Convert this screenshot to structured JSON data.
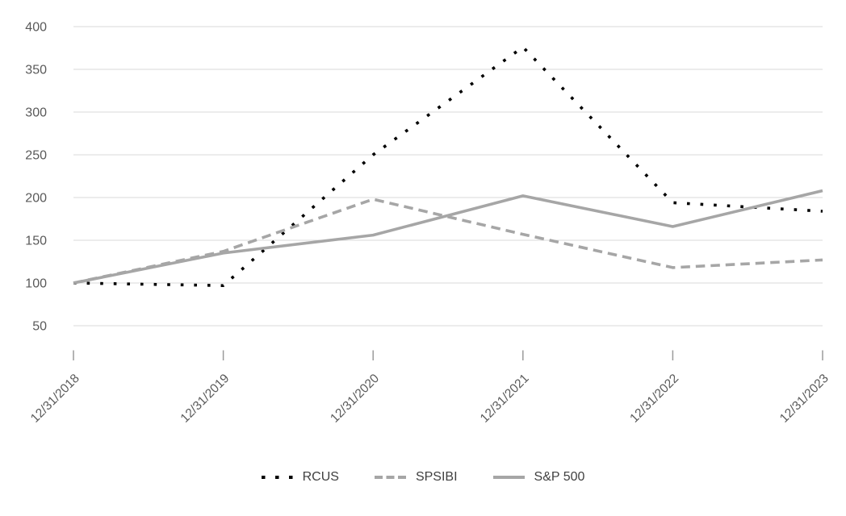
{
  "chart_data": {
    "type": "line",
    "title": "",
    "categories": [
      "12/31/2018",
      "12/31/2019",
      "12/31/2020",
      "12/31/2021",
      "12/31/2022",
      "12/31/2023"
    ],
    "series": [
      {
        "name": "RCUS",
        "line_style": "dotted",
        "color": "#000000",
        "values": [
          100,
          97,
          250,
          376,
          194,
          184
        ]
      },
      {
        "name": "SPSIBI",
        "line_style": "dashed",
        "color": "#a6a6a6",
        "values": [
          100,
          137,
          198,
          157,
          118,
          127
        ]
      },
      {
        "name": "S&P 500",
        "line_style": "solid",
        "color": "#a6a6a6",
        "values": [
          100,
          135,
          156,
          202,
          166,
          208
        ]
      }
    ],
    "y_axis": {
      "min": 50,
      "max": 400,
      "tick_step": 50,
      "tick_labels": [
        "400",
        "350",
        "300",
        "250",
        "200",
        "150",
        "100",
        "50"
      ]
    },
    "x_axis": {
      "tick_marks": true
    },
    "grid": true,
    "legend_position": "bottom",
    "colors": {
      "background": "#ffffff",
      "gridline": "#d9d9d9",
      "tick_mark": "#9a9a9a",
      "axis_label": "#595959",
      "legend_label": "#404040"
    }
  }
}
